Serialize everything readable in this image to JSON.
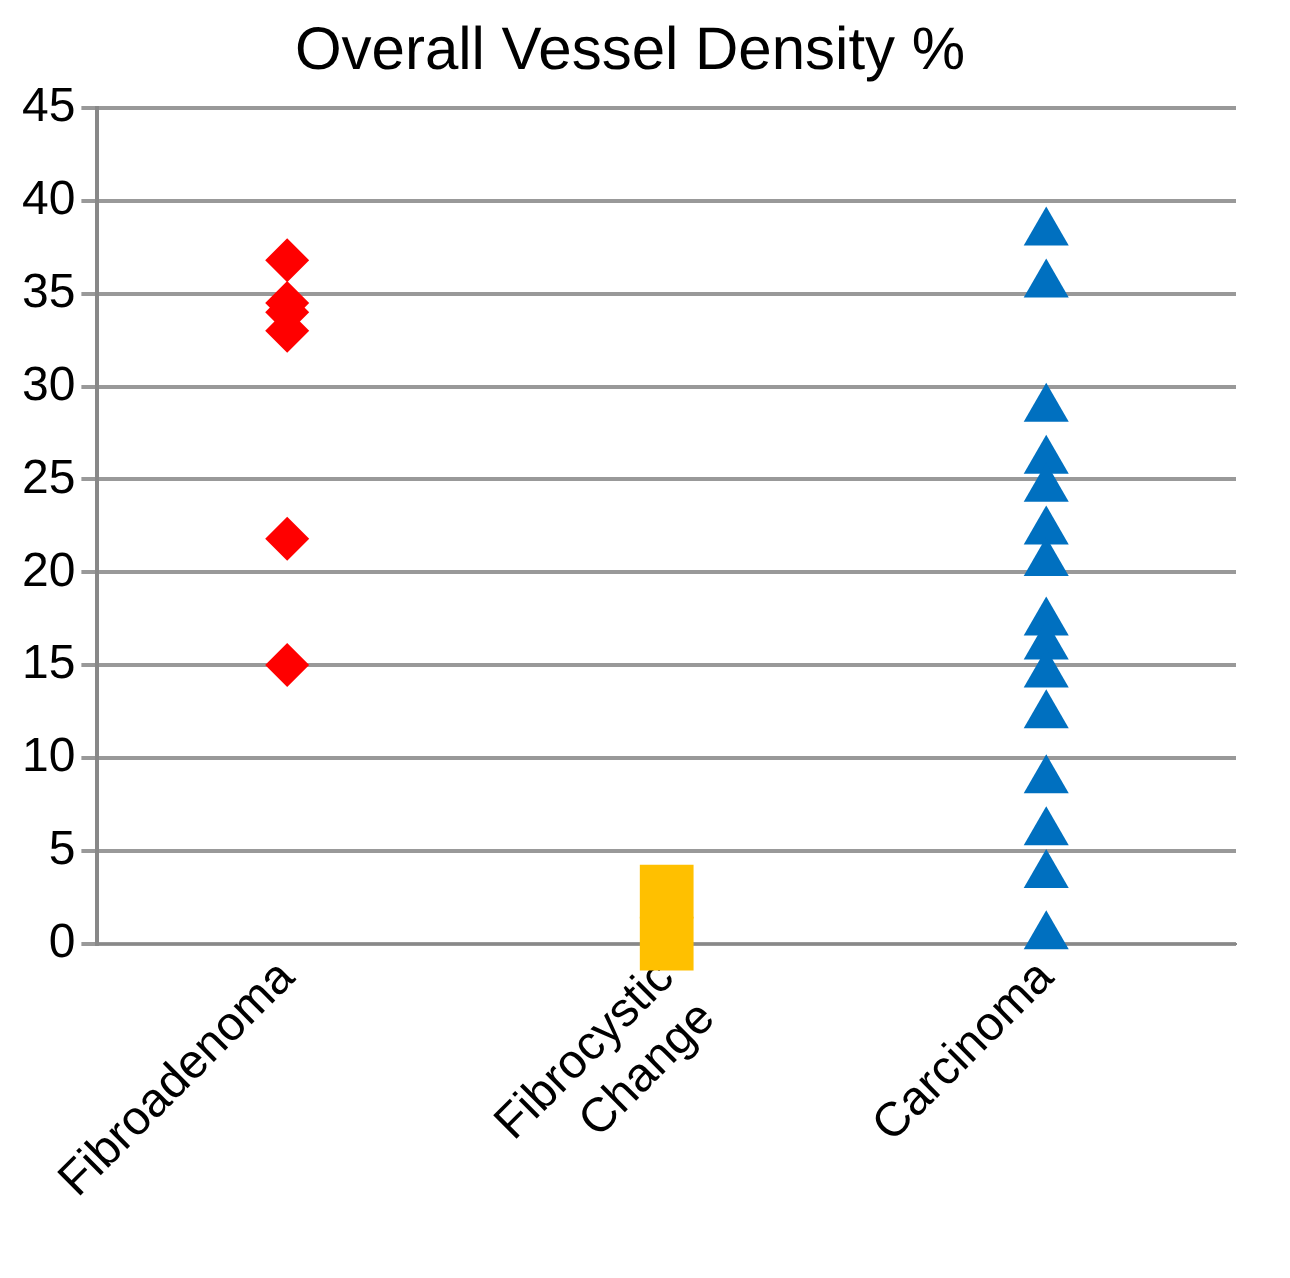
{
  "chart_data": {
    "type": "scatter",
    "title": "Overall Vessel Density %",
    "categories": [
      "Fibroadenoma",
      "Fibrocystic Change",
      "Carcinoma"
    ],
    "series": [
      {
        "type": "scatter",
        "marker": "diamond",
        "color": "#ff0000",
        "x": [
          "Fibroadenoma",
          "Fibroadenoma",
          "Fibroadenoma",
          "Fibroadenoma",
          "Fibroadenoma",
          "Fibroadenoma"
        ],
        "values": [
          36.8,
          34.5,
          34,
          33,
          21.8,
          15
        ]
      },
      {
        "type": "scatter",
        "marker": "square",
        "color": "#ffc000",
        "x": [
          "Fibrocystic Change",
          "Fibrocystic Change"
        ],
        "values": [
          2.8,
          0
        ]
      },
      {
        "type": "scatter",
        "marker": "triangle",
        "color": "#0070c0",
        "x": [
          "Carcinoma",
          "Carcinoma",
          "Carcinoma",
          "Carcinoma",
          "Carcinoma",
          "Carcinoma",
          "Carcinoma",
          "Carcinoma",
          "Carcinoma",
          "Carcinoma",
          "Carcinoma",
          "Carcinoma",
          "Carcinoma",
          "Carcinoma",
          "Carcinoma"
        ],
        "values": [
          38.3,
          35.5,
          28.8,
          26,
          24.5,
          22.2,
          20.5,
          17.3,
          16,
          14.5,
          12.3,
          8.8,
          6,
          3.7,
          0.4
        ]
      }
    ],
    "ylim": [
      0,
      45
    ],
    "yticks": [
      0,
      5,
      10,
      15,
      20,
      25,
      30,
      35,
      40,
      45
    ],
    "grid": "y"
  }
}
